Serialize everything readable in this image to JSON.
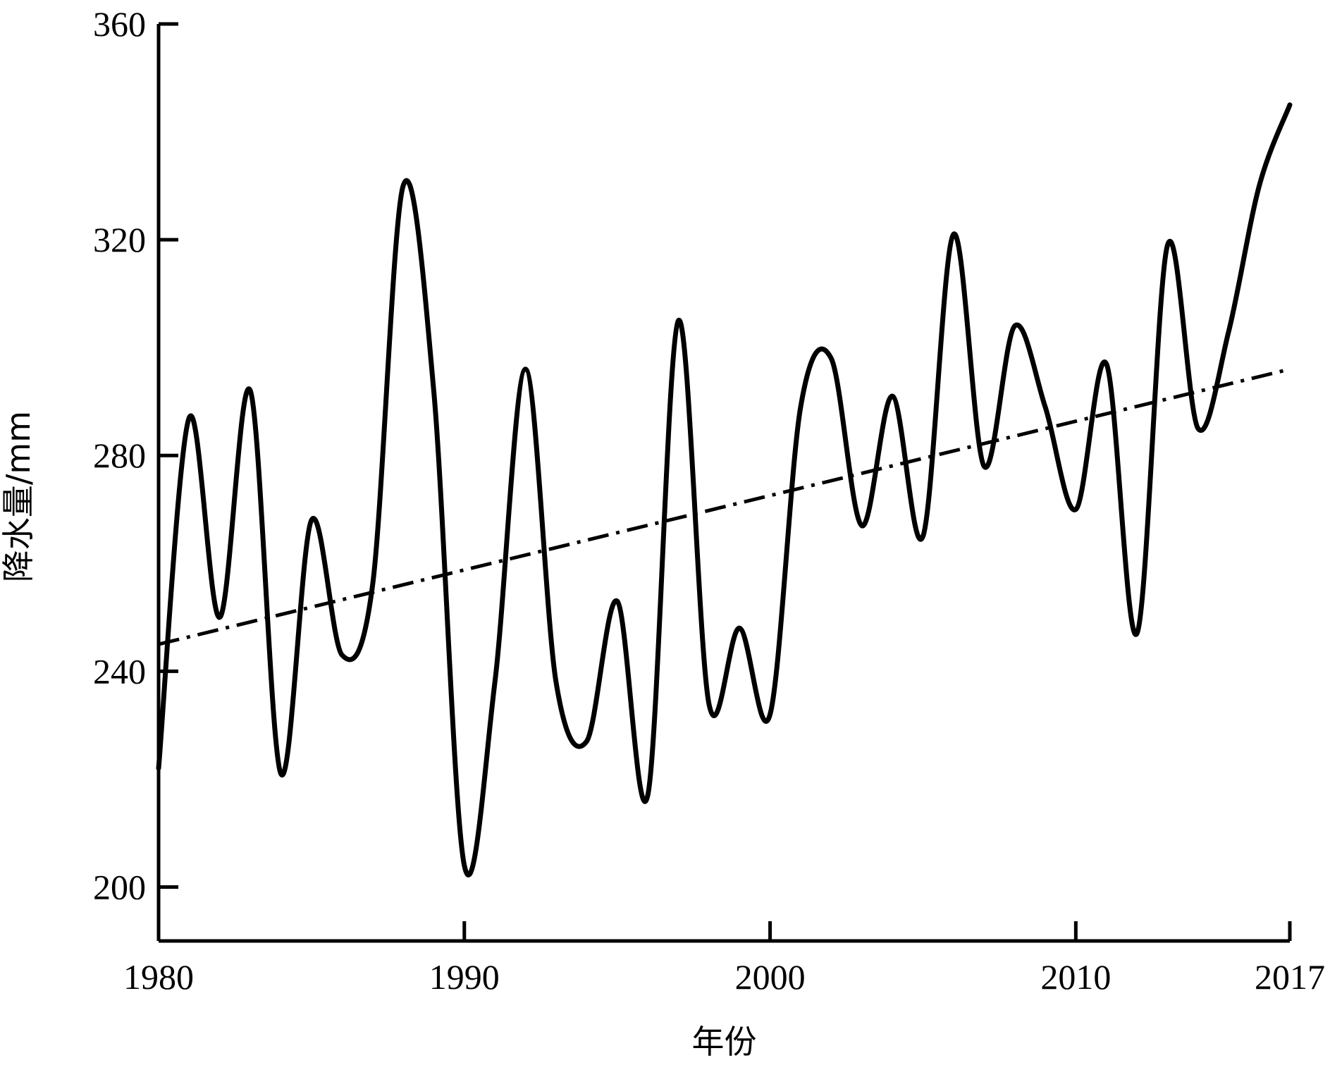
{
  "chart_data": {
    "type": "line",
    "xlabel": "年份",
    "ylabel": "降水量/mm",
    "xlim": [
      1980,
      2017
    ],
    "ylim": [
      190,
      360
    ],
    "x_ticks": [
      "1980",
      "1990",
      "2000",
      "2010",
      "2017"
    ],
    "y_ticks": [
      "200",
      "240",
      "280",
      "320",
      "360"
    ],
    "grid": false,
    "series": [
      {
        "style": "solid",
        "x": [
          1980,
          1981,
          1982,
          1983,
          1984,
          1985,
          1986,
          1987,
          1988,
          1989,
          1990,
          1991,
          1992,
          1993,
          1994,
          1995,
          1996,
          1997,
          1998,
          1999,
          2000,
          2001,
          2002,
          2003,
          2004,
          2005,
          2006,
          2007,
          2008,
          2009,
          2010,
          2011,
          2012,
          2013,
          2014,
          2015,
          2016,
          2017
        ],
        "y": [
          222,
          287,
          250,
          292,
          221,
          268,
          243,
          256,
          330,
          292,
          204,
          238,
          296,
          238,
          227,
          253,
          217,
          305,
          234,
          248,
          232,
          289,
          298,
          267,
          291,
          265,
          321,
          278,
          304,
          289,
          270,
          297,
          247,
          319,
          285,
          303,
          330,
          345
        ]
      },
      {
        "style": "dash-dot",
        "x": [
          1980,
          2017
        ],
        "y": [
          245,
          296
        ]
      }
    ]
  }
}
